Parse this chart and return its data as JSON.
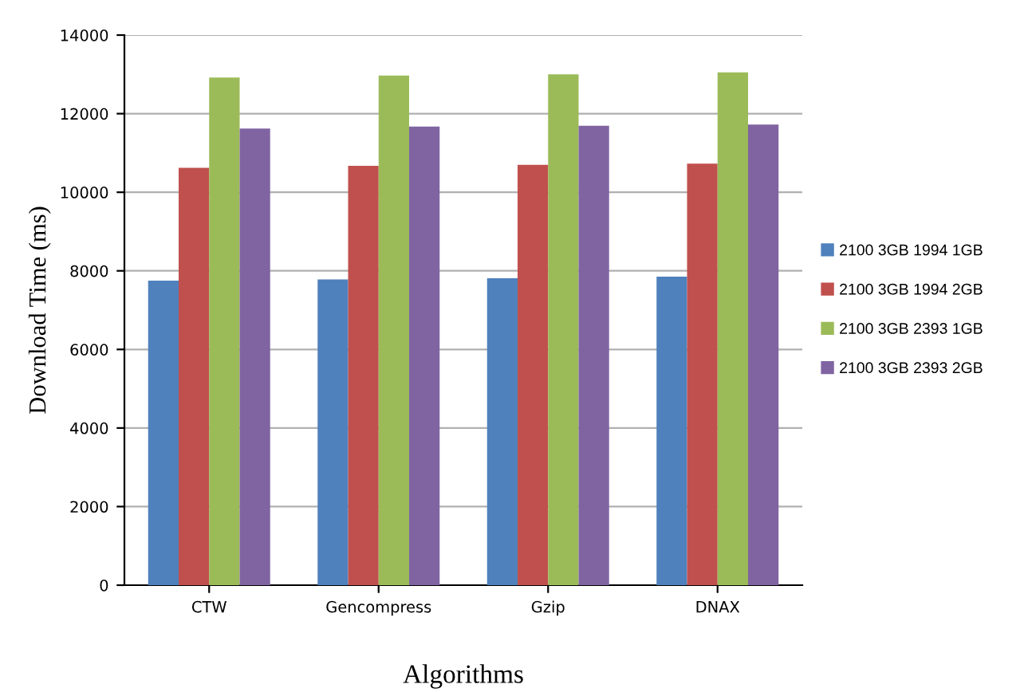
{
  "chart_data": {
    "type": "bar",
    "xlabel": "Algorithms",
    "ylabel": "Download Time (ms)",
    "categories": [
      "CTW",
      "Gencompress",
      "Gzip",
      "DNAX"
    ],
    "series": [
      {
        "name": "2100 3GB 1994 1GB",
        "color": "#4f81bd",
        "values": [
          7750,
          7780,
          7810,
          7850
        ]
      },
      {
        "name": "2100 3GB 1994 2GB",
        "color": "#c0504d",
        "values": [
          10620,
          10670,
          10700,
          10730
        ]
      },
      {
        "name": "2100 3GB 2393 1GB",
        "color": "#9bbb59",
        "values": [
          12920,
          12970,
          13000,
          13050
        ]
      },
      {
        "name": "2100 3GB 2393 2GB",
        "color": "#8064a2",
        "values": [
          11620,
          11670,
          11690,
          11720
        ]
      }
    ],
    "ylim": [
      0,
      14000
    ],
    "yticks": [
      0,
      2000,
      4000,
      6000,
      8000,
      10000,
      12000,
      14000
    ],
    "grid": "y",
    "legend": "right"
  }
}
